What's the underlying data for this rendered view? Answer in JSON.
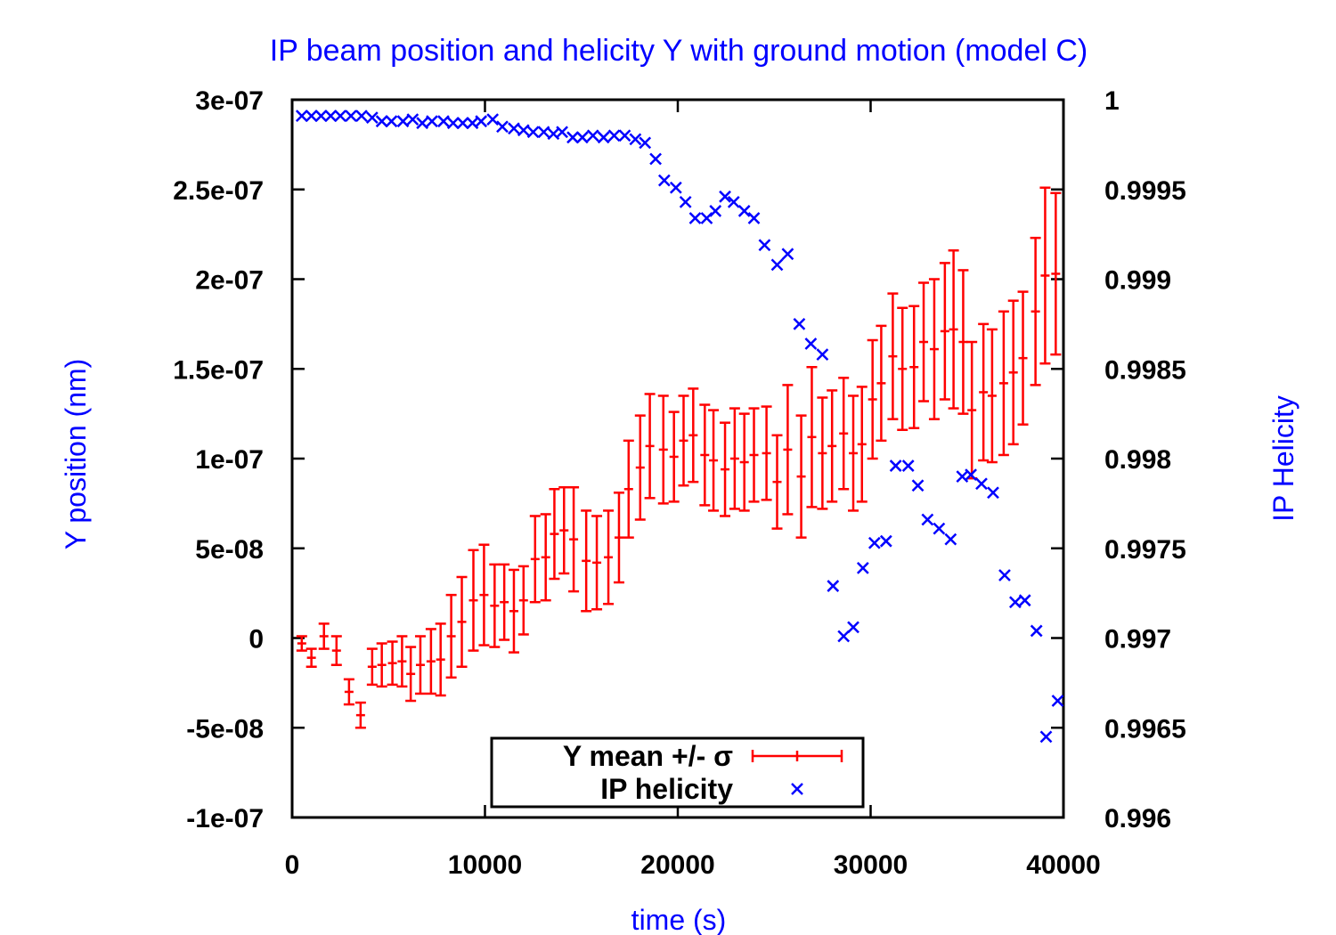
{
  "chart_data": {
    "type": "scatter",
    "title": "IP beam position and helicity Y with ground motion (model C)",
    "xlabel": "time (s)",
    "ylabel": "Y position (nm)",
    "y2label": "IP Helicity",
    "xlim": [
      0,
      40000
    ],
    "ylim": [
      -1e-07,
      3e-07
    ],
    "y2lim": [
      0.996,
      1.0
    ],
    "x_ticks": [
      0,
      10000,
      20000,
      30000,
      40000
    ],
    "x_tick_labels": [
      "0",
      "10000",
      "20000",
      "30000",
      "40000"
    ],
    "y_ticks": [
      -1e-07,
      -5e-08,
      0,
      5e-08,
      1e-07,
      1.5e-07,
      2e-07,
      2.5e-07,
      3e-07
    ],
    "y_tick_labels": [
      "-1e-07",
      "-5e-08",
      "0",
      "5e-08",
      "1e-07",
      "1.5e-07",
      "2e-07",
      "2.5e-07",
      "3e-07"
    ],
    "y2_ticks": [
      0.996,
      0.9965,
      0.997,
      0.9975,
      0.998,
      0.9985,
      0.999,
      0.9995,
      1.0
    ],
    "y2_tick_labels": [
      "0.996",
      "0.9965",
      "0.997",
      "0.9975",
      "0.998",
      "0.9985",
      "0.999",
      "0.9995",
      "1"
    ],
    "legend_position": "bottom-center",
    "grid": false,
    "series": [
      {
        "name": "Y mean +/- σ",
        "legend_label": "Y mean +/- σ",
        "axis": "left",
        "color": "#ff0000",
        "style": "errorbars",
        "x": [
          500,
          1000,
          1650,
          2300,
          2950,
          3550,
          4150,
          4650,
          5200,
          5700,
          6150,
          6650,
          7200,
          7700,
          8250,
          8800,
          9400,
          9950,
          10500,
          11000,
          11500,
          12000,
          12600,
          13150,
          13600,
          14100,
          14600,
          15250,
          15800,
          16400,
          16950,
          17450,
          18050,
          18550,
          19250,
          19800,
          20300,
          20800,
          21400,
          21850,
          22450,
          22950,
          23450,
          23950,
          24600,
          25150,
          25700,
          26400,
          26950,
          27500,
          28000,
          28600,
          29100,
          29550,
          30100,
          30550,
          31150,
          31650,
          32250,
          32750,
          33300,
          33850,
          34300,
          34800,
          35250,
          35850,
          36300,
          36900,
          37400,
          37900,
          38550,
          39050,
          39600
        ],
        "y": [
          -3e-09,
          -1.1e-08,
          1e-09,
          -7e-09,
          -3e-08,
          -4.3e-08,
          -1.6e-08,
          -1.5e-08,
          -1.4e-08,
          -1.3e-08,
          -2e-08,
          -1.5e-08,
          -1.3e-08,
          -1.2e-08,
          1e-09,
          9e-09,
          2.1e-08,
          2.4e-08,
          1.8e-08,
          2e-08,
          1.5e-08,
          2.1e-08,
          4.4e-08,
          4.5e-08,
          5.8e-08,
          6e-08,
          5.5e-08,
          4.3e-08,
          4.2e-08,
          4.5e-08,
          5.6e-08,
          8.3e-08,
          9.5e-08,
          1.07e-07,
          1.05e-07,
          1.01e-07,
          1.1e-07,
          1.13e-07,
          1.02e-07,
          9.9e-08,
          9.4e-08,
          1e-07,
          9.8e-08,
          1.02e-07,
          1.03e-07,
          8.7e-08,
          1.05e-07,
          9e-08,
          1.12e-07,
          1.03e-07,
          1.07e-07,
          1.14e-07,
          1.03e-07,
          1.08e-07,
          1.33e-07,
          1.42e-07,
          1.57e-07,
          1.5e-07,
          1.51e-07,
          1.65e-07,
          1.61e-07,
          1.71e-07,
          1.72e-07,
          1.65e-07,
          1.27e-07,
          1.37e-07,
          1.35e-07,
          1.42e-07,
          1.48e-07,
          1.56e-07,
          1.82e-07,
          2.02e-07,
          2.03e-07
        ],
        "err": [
          4e-09,
          5e-09,
          7e-09,
          8e-09,
          7e-09,
          7e-09,
          1e-08,
          1.2e-08,
          1.2e-08,
          1.4e-08,
          1.5e-08,
          1.6e-08,
          1.8e-08,
          2e-08,
          2.3e-08,
          2.5e-08,
          2.8e-08,
          2.8e-08,
          2.3e-08,
          2.1e-08,
          2.3e-08,
          1.9e-08,
          2.4e-08,
          2.4e-08,
          2.5e-08,
          2.4e-08,
          2.9e-08,
          2.8e-08,
          2.6e-08,
          2.6e-08,
          2.5e-08,
          2.7e-08,
          2.9e-08,
          2.9e-08,
          3e-08,
          2.5e-08,
          2.5e-08,
          2.6e-08,
          2.8e-08,
          2.8e-08,
          2.6e-08,
          2.8e-08,
          2.7e-08,
          2.6e-08,
          2.6e-08,
          2.6e-08,
          3.6e-08,
          3.4e-08,
          3.9e-08,
          3.1e-08,
          3.1e-08,
          3.1e-08,
          3.2e-08,
          3.2e-08,
          3.3e-08,
          3.2e-08,
          3.5e-08,
          3.4e-08,
          3.4e-08,
          3.3e-08,
          3.9e-08,
          3.8e-08,
          4.4e-08,
          4e-08,
          3.8e-08,
          3.8e-08,
          3.7e-08,
          4e-08,
          4e-08,
          3.7e-08,
          4.1e-08,
          4.9e-08,
          4.5e-08
        ]
      },
      {
        "name": "IP helicity",
        "legend_label": "IP helicity",
        "axis": "right",
        "color": "#0000ff",
        "style": "points",
        "marker": "x",
        "x": [
          500,
          1000,
          1500,
          2000,
          2500,
          3050,
          3600,
          4150,
          4650,
          5150,
          5750,
          6250,
          6750,
          7250,
          7850,
          8350,
          8850,
          9350,
          9800,
          10400,
          10900,
          11500,
          12000,
          12500,
          13050,
          13550,
          14000,
          14550,
          15050,
          15600,
          16150,
          16700,
          17250,
          17800,
          18300,
          18850,
          19300,
          19900,
          20400,
          20900,
          21500,
          21950,
          22450,
          22900,
          23450,
          23950,
          24500,
          25150,
          25700,
          26300,
          26900,
          27500,
          28050,
          28600,
          29100,
          29600,
          30200,
          30800,
          31300,
          31950,
          32450,
          32950,
          33550,
          34150,
          34750,
          35200,
          35750,
          36350,
          36950,
          37500,
          38000,
          38600,
          39100,
          39700
        ],
        "y": [
          0.99991,
          0.99991,
          0.99991,
          0.99991,
          0.99991,
          0.99991,
          0.99991,
          0.9999,
          0.99988,
          0.99988,
          0.99988,
          0.99989,
          0.99987,
          0.99988,
          0.99988,
          0.99987,
          0.99987,
          0.99987,
          0.99988,
          0.99989,
          0.99985,
          0.99984,
          0.99983,
          0.99982,
          0.99982,
          0.99981,
          0.99982,
          0.99979,
          0.99979,
          0.9998,
          0.99979,
          0.9998,
          0.9998,
          0.99978,
          0.99976,
          0.99967,
          0.99955,
          0.99951,
          0.99943,
          0.99934,
          0.99934,
          0.99938,
          0.99946,
          0.99943,
          0.99938,
          0.99934,
          0.99919,
          0.99908,
          0.99914,
          0.99875,
          0.99864,
          0.99858,
          0.99729,
          0.99701,
          0.99706,
          0.99739,
          0.99753,
          0.99754,
          0.99796,
          0.99796,
          0.99785,
          0.99766,
          0.99761,
          0.99755,
          0.9979,
          0.99791,
          0.99786,
          0.99781,
          0.99735,
          0.9972,
          0.99721,
          0.99704,
          0.99645,
          0.99665
        ]
      }
    ]
  }
}
